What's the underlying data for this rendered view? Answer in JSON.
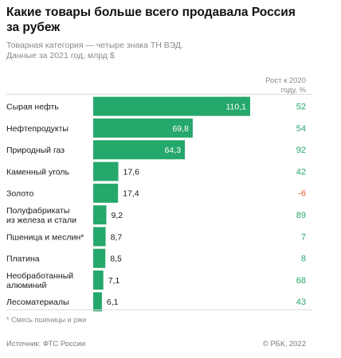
{
  "title": "Какие товары больше всего продавала Россия за рубеж",
  "subtitle_lines": [
    "Товарная категория — четыре знака ТН ВЭД.",
    "Данные за 2021 год, млрд $"
  ],
  "growth_header_lines": [
    "Рост к 2020",
    "году, %"
  ],
  "footnote": "* Смесь пшеницы и ржи",
  "source": "Источник: ФТС России",
  "credit": "© РБК, 2022",
  "colors": {
    "bar": "#25a86b",
    "positive": "#25a86b",
    "negative": "#e4572e",
    "text": "#1a1a1a",
    "muted": "#8a8a8a"
  },
  "chart_data": {
    "type": "bar",
    "orientation": "horizontal",
    "categories": [
      "Сырая нефть",
      "Нефтепродукты",
      "Природный газ",
      "Каменный уголь",
      "Золото",
      "Полуфабрикаты из железа и стали",
      "Пшеница и меслин*",
      "Платина",
      "Необработанный алюминий",
      "Лесоматериалы"
    ],
    "category_lines": [
      [
        "Сырая нефть"
      ],
      [
        "Нефтепродукты"
      ],
      [
        "Природный газ"
      ],
      [
        "Каменный уголь"
      ],
      [
        "Золото"
      ],
      [
        "Полуфабрикаты",
        "из железа и стали"
      ],
      [
        "Пшеница и меслин*"
      ],
      [
        "Платина"
      ],
      [
        "Необработанный",
        "алюминий"
      ],
      [
        "Лесоматериалы"
      ]
    ],
    "values": [
      110.1,
      69.8,
      64.3,
      17.6,
      17.4,
      9.2,
      8.7,
      8.5,
      7.1,
      6.1
    ],
    "value_labels": [
      "110,1",
      "69,8",
      "64,3",
      "17,6",
      "17,4",
      "9,2",
      "8,7",
      "8,5",
      "7,1",
      "6,1"
    ],
    "growth": [
      52,
      54,
      92,
      42,
      -6,
      89,
      7,
      8,
      68,
      43
    ],
    "growth_labels": [
      "52",
      "54",
      "92",
      "42",
      "-6",
      "89",
      "7",
      "8",
      "68",
      "43"
    ],
    "title": "Какие товары больше всего продавала Россия за рубеж",
    "xlabel": "",
    "ylabel": "",
    "xlim": [
      0,
      110.1
    ],
    "grid": false,
    "legend": "none"
  }
}
